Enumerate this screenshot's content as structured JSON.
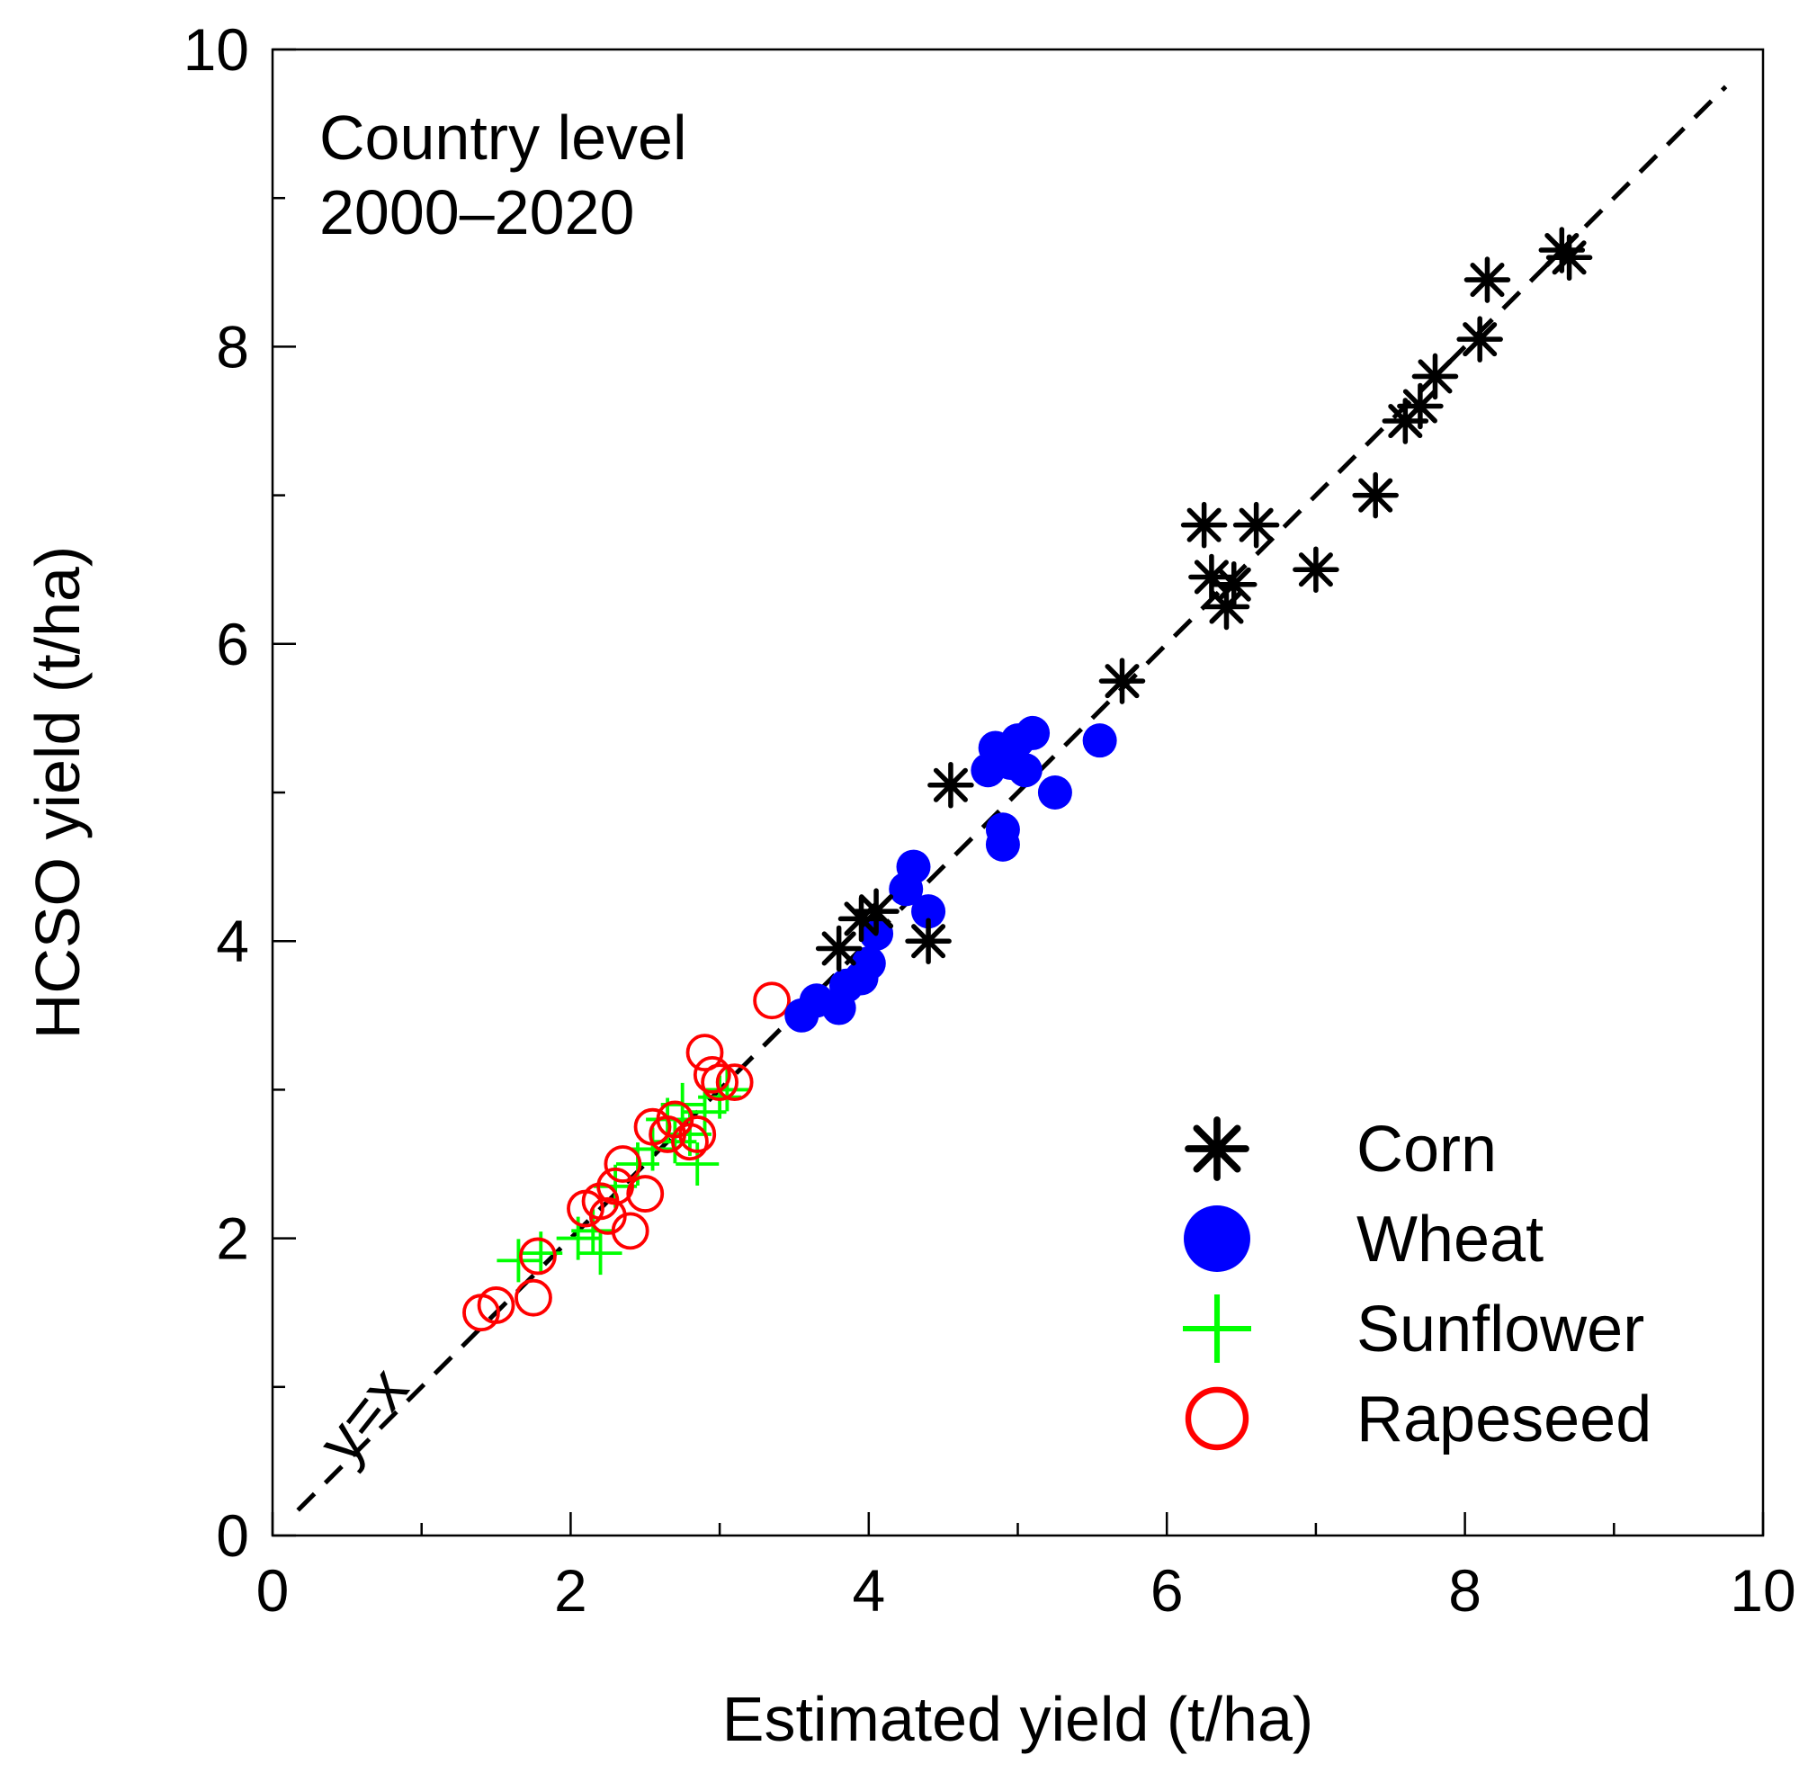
{
  "chart_data": {
    "type": "scatter",
    "xlabel": "Estimated yield (t/ha)",
    "ylabel": "HCSO yield (t/ha)",
    "xlim": [
      0,
      10
    ],
    "ylim": [
      0,
      10
    ],
    "xticks": [
      "0",
      "2",
      "4",
      "6",
      "8",
      "10"
    ],
    "yticks": [
      "0",
      "2",
      "4",
      "6",
      "8",
      "10"
    ],
    "grid": false,
    "annotation": {
      "line1": "Country level",
      "line2": "2000–2020"
    },
    "reference_line": {
      "label": "y=x",
      "from": [
        0.17,
        0.17
      ],
      "to": [
        9.75,
        9.75
      ],
      "style": "dashed",
      "color": "#000000"
    },
    "legend_placement": "bottom-right",
    "series": [
      {
        "name": "Corn",
        "marker": "asterisk",
        "color": "#000000",
        "points": [
          [
            3.8,
            3.95
          ],
          [
            3.95,
            4.15
          ],
          [
            4.05,
            4.2
          ],
          [
            4.4,
            4.0
          ],
          [
            4.55,
            5.05
          ],
          [
            5.7,
            5.75
          ],
          [
            6.25,
            6.8
          ],
          [
            6.3,
            6.45
          ],
          [
            6.4,
            6.25
          ],
          [
            6.45,
            6.4
          ],
          [
            6.6,
            6.8
          ],
          [
            7.0,
            6.5
          ],
          [
            7.4,
            7.0
          ],
          [
            7.6,
            7.5
          ],
          [
            7.7,
            7.6
          ],
          [
            7.8,
            7.8
          ],
          [
            8.1,
            8.05
          ],
          [
            8.15,
            8.45
          ],
          [
            8.65,
            8.65
          ],
          [
            8.7,
            8.6
          ]
        ]
      },
      {
        "name": "Wheat",
        "marker": "filled-circle",
        "color": "#0000ff",
        "points": [
          [
            3.55,
            3.5
          ],
          [
            3.65,
            3.6
          ],
          [
            3.8,
            3.55
          ],
          [
            3.85,
            3.7
          ],
          [
            3.95,
            3.75
          ],
          [
            4.0,
            3.85
          ],
          [
            4.05,
            4.05
          ],
          [
            4.25,
            4.35
          ],
          [
            4.3,
            4.5
          ],
          [
            4.4,
            4.2
          ],
          [
            4.8,
            5.15
          ],
          [
            4.85,
            5.3
          ],
          [
            4.9,
            4.65
          ],
          [
            4.9,
            4.75
          ],
          [
            4.95,
            5.2
          ],
          [
            5.0,
            5.35
          ],
          [
            5.05,
            5.15
          ],
          [
            5.1,
            5.4
          ],
          [
            5.25,
            5.0
          ],
          [
            5.55,
            5.35
          ]
        ]
      },
      {
        "name": "Sunflower",
        "marker": "plus",
        "color": "#00ff00",
        "points": [
          [
            1.65,
            1.85
          ],
          [
            1.8,
            1.9
          ],
          [
            2.05,
            2.0
          ],
          [
            2.15,
            2.05
          ],
          [
            2.2,
            1.9
          ],
          [
            2.3,
            2.35
          ],
          [
            2.45,
            2.5
          ],
          [
            2.55,
            2.6
          ],
          [
            2.65,
            2.8
          ],
          [
            2.7,
            2.65
          ],
          [
            2.75,
            2.9
          ],
          [
            2.8,
            2.7
          ],
          [
            2.85,
            2.5
          ],
          [
            2.9,
            2.85
          ],
          [
            3.0,
            2.95
          ],
          [
            3.05,
            3.0
          ]
        ]
      },
      {
        "name": "Rapeseed",
        "marker": "open-circle",
        "color": "#ff0000",
        "points": [
          [
            1.4,
            1.5
          ],
          [
            1.5,
            1.55
          ],
          [
            1.75,
            1.6
          ],
          [
            1.78,
            1.88
          ],
          [
            2.1,
            2.2
          ],
          [
            2.2,
            2.25
          ],
          [
            2.25,
            2.15
          ],
          [
            2.3,
            2.35
          ],
          [
            2.35,
            2.5
          ],
          [
            2.4,
            2.05
          ],
          [
            2.5,
            2.3
          ],
          [
            2.55,
            2.75
          ],
          [
            2.65,
            2.7
          ],
          [
            2.7,
            2.8
          ],
          [
            2.8,
            2.65
          ],
          [
            2.85,
            2.7
          ],
          [
            2.9,
            3.25
          ],
          [
            2.95,
            3.1
          ],
          [
            3.0,
            3.05
          ],
          [
            3.1,
            3.05
          ],
          [
            3.35,
            3.6
          ]
        ]
      }
    ]
  }
}
